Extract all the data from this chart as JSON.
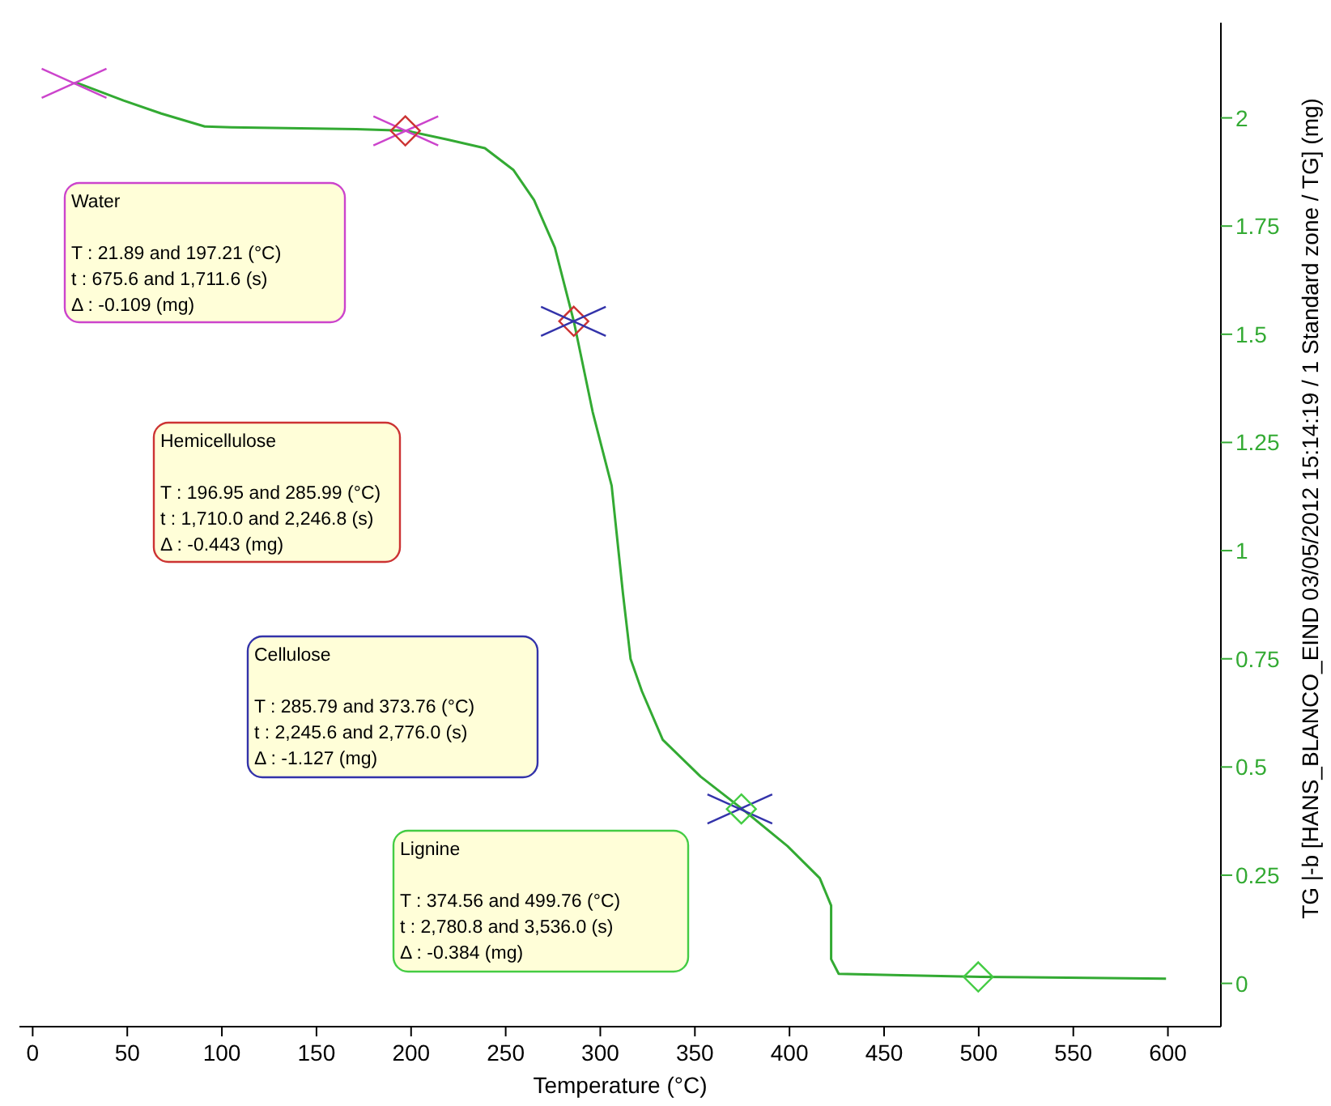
{
  "chart_data": {
    "type": "line",
    "xlabel": "Temperature (°C)",
    "ylabel": "TG |-b [HANS_BLANCO_EIND 03/05/2012 15:14:19 / 1 Standard zone / TG] (mg)",
    "xlim": [
      -7,
      628
    ],
    "ylim": [
      -0.1,
      2.22
    ],
    "xticks": [
      0,
      50,
      100,
      150,
      200,
      250,
      300,
      350,
      400,
      450,
      500,
      550,
      600
    ],
    "yticks": [
      0,
      0.25,
      0.5,
      0.75,
      1,
      1.25,
      1.5,
      1.75,
      2
    ],
    "grid": false,
    "series": [
      {
        "color": "#33aa33",
        "marker": "none",
        "x": [
          21.89,
          24,
          48,
          68,
          91,
          105,
          171,
          198,
          219,
          239,
          254,
          265,
          276,
          286,
          296,
          306,
          312,
          316,
          322,
          333,
          353,
          375,
          399,
          416,
          422,
          422,
          426,
          459,
          501,
          599
        ],
        "values": [
          2.08,
          2.08,
          2.04,
          2.01,
          1.98,
          1.978,
          1.974,
          1.97,
          1.95,
          1.93,
          1.88,
          1.81,
          1.7,
          1.53,
          1.32,
          1.15,
          0.9,
          0.75,
          0.675,
          0.563,
          0.478,
          0.403,
          0.317,
          0.243,
          0.18,
          0.056,
          0.022,
          0.019,
          0.015,
          0.011
        ]
      },
      {
        "type": "scatter",
        "color": "#cc44cc",
        "marker": "cross",
        "x": [
          21.89,
          197.21
        ],
        "values": [
          2.08,
          1.97
        ]
      },
      {
        "type": "scatter",
        "color": "#cc3333",
        "marker": "diamond",
        "x": [
          196.95,
          285.99
        ],
        "values": [
          1.97,
          1.53
        ]
      },
      {
        "type": "scatter",
        "color": "#3333aa",
        "marker": "cross",
        "x": [
          285.79,
          373.76
        ],
        "values": [
          1.53,
          0.403
        ]
      },
      {
        "type": "scatter",
        "color": "#44cc44",
        "marker": "diamond",
        "x": [
          374.56,
          499.76
        ],
        "values": [
          0.403,
          0.015
        ]
      }
    ],
    "annotations": [
      "Water\n\nT : 21.89 and 197.21 (°C)\nt : 675.6 and 1,711.6 (s)\nΔ : -0.109 (mg)",
      "Hemicellulose\n\nT : 196.95 and 285.99 (°C)\nt : 1,710.0 and 2,246.8 (s)\nΔ : -0.443 (mg)",
      "Cellulose\n\nT : 285.79 and 373.76 (°C)\nt : 2,245.6 and 2,776.0 (s)\nΔ : -1.127 (mg)",
      "Lignine\n\nT : 374.56 and 499.76 (°C)\nt : 2,780.8 and 3,536.0 (s)\nΔ : -0.384 (mg)"
    ]
  }
}
